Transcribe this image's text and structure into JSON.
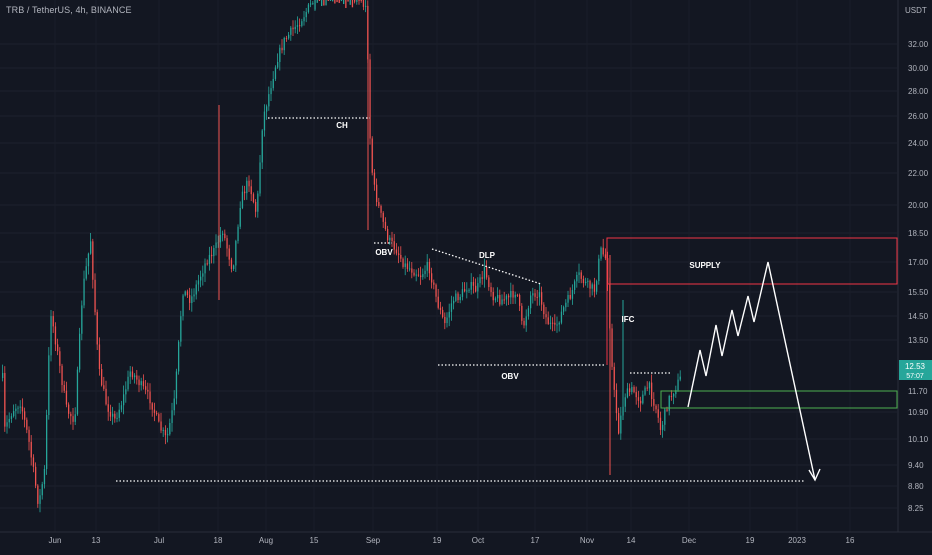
{
  "header": {
    "symbol_line": "TRB / TetherUS, 4h, BINANCE",
    "currency": "USDT"
  },
  "chart_data": {
    "type": "candlestick",
    "y_ticks": [
      "32.00",
      "30.00",
      "28.00",
      "26.00",
      "24.00",
      "22.00",
      "20.00",
      "18.50",
      "17.00",
      "15.50",
      "14.50",
      "13.50",
      "11.70",
      "10.90",
      "10.10",
      "9.40",
      "8.80",
      "8.25"
    ],
    "x_ticks": [
      "Jun",
      "13",
      "Jul",
      "18",
      "Aug",
      "15",
      "Sep",
      "19",
      "Oct",
      "17",
      "Nov",
      "14",
      "Dec",
      "19",
      "2023",
      "16"
    ],
    "last_price": "12.53",
    "countdown": "57:07",
    "annotations": [
      {
        "text": "CH",
        "kind": "structure-level"
      },
      {
        "text": "OBV",
        "kind": "structure-level"
      },
      {
        "text": "DLP",
        "kind": "trendline"
      },
      {
        "text": "OBV",
        "kind": "structure-level"
      },
      {
        "text": "SUPPLY",
        "kind": "zone"
      },
      {
        "text": "IFC",
        "kind": "label"
      }
    ],
    "colors": {
      "background": "#131722",
      "up": "#26a69a",
      "down": "#ef5350",
      "supply_zone": "#f23645",
      "demand_zone": "#4caf50",
      "projection": "#ffffff",
      "price_label": "#26a69a"
    }
  }
}
